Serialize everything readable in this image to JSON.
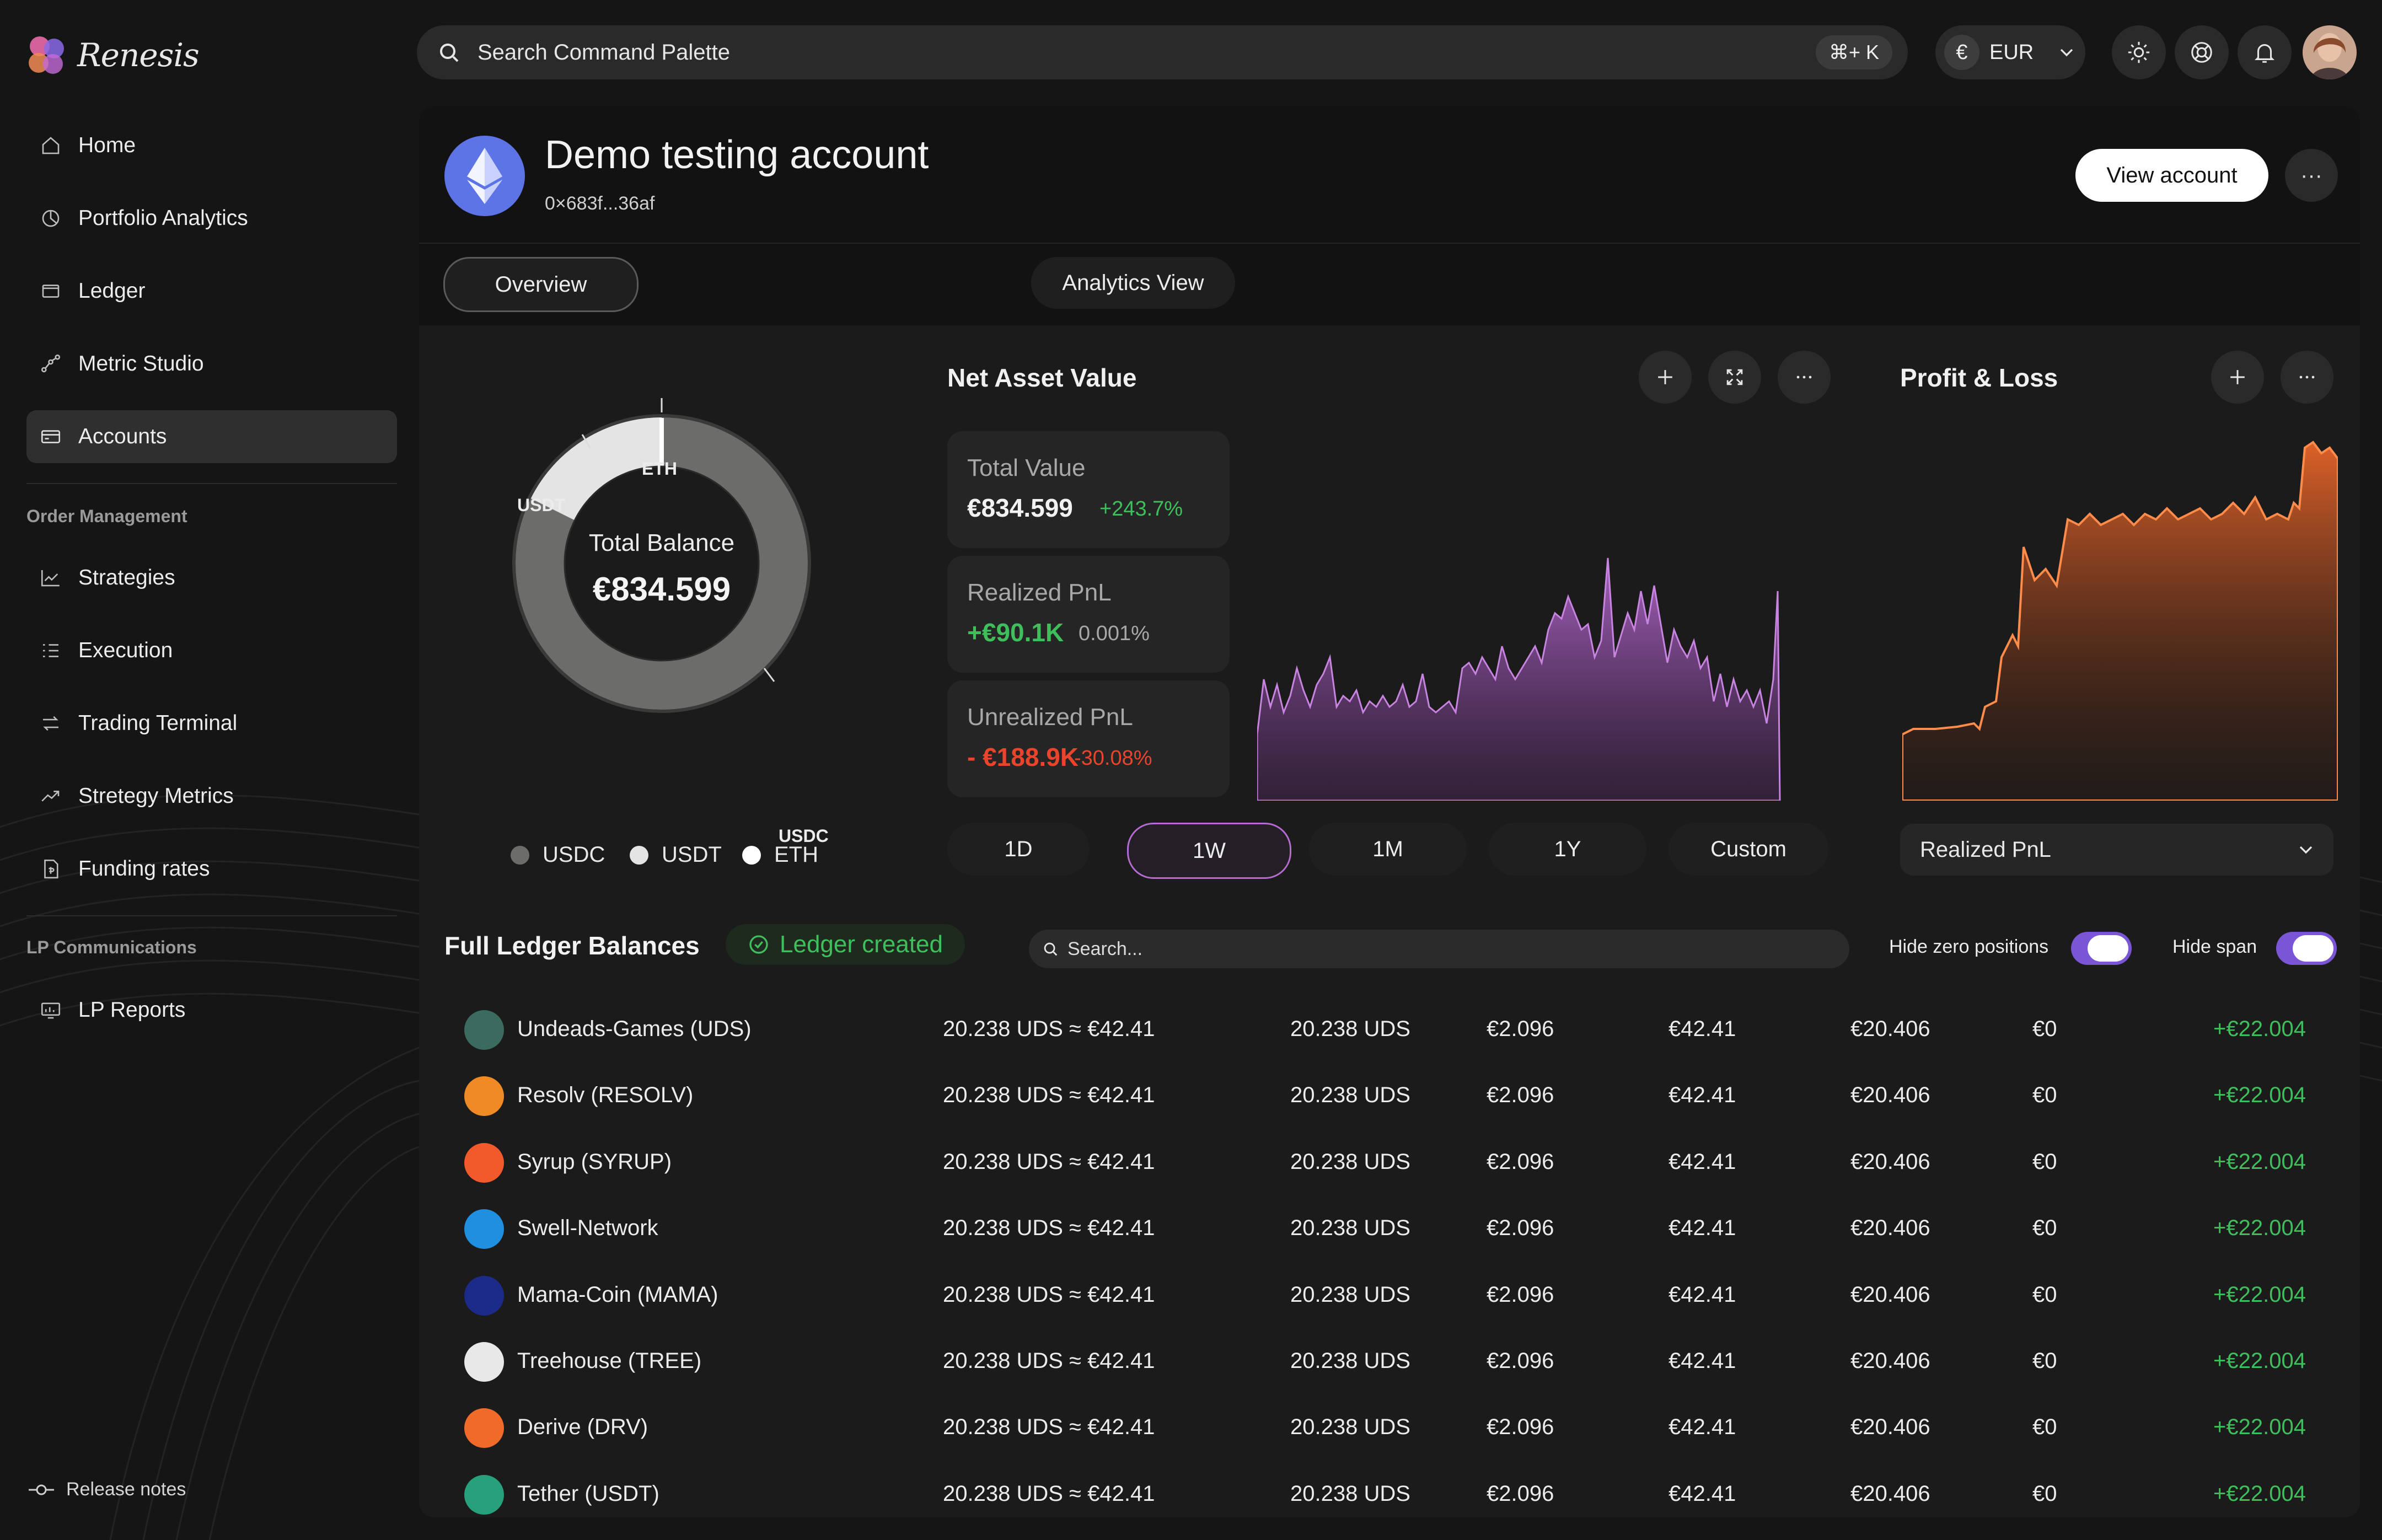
{
  "app": {
    "name": "Renesis"
  },
  "sidebar": {
    "items": [
      {
        "label": "Home",
        "icon": "home-icon"
      },
      {
        "label": "Portfolio Analytics",
        "icon": "pie-chart-icon"
      },
      {
        "label": "Ledger",
        "icon": "wallet-icon"
      },
      {
        "label": "Metric Studio",
        "icon": "nodes-icon"
      },
      {
        "label": "Accounts",
        "icon": "card-icon",
        "active": true
      }
    ],
    "section_order": "Order Management",
    "order_items": [
      {
        "label": "Strategies",
        "icon": "line-chart-icon"
      },
      {
        "label": "Execution",
        "icon": "checklist-icon"
      },
      {
        "label": "Trading Terminal",
        "icon": "swap-icon"
      },
      {
        "label": "Stretegy Metrics",
        "icon": "trend-up-icon"
      },
      {
        "label": "Funding rates",
        "icon": "document-dollar-icon"
      }
    ],
    "section_lp": "LP Communications",
    "lp_items": [
      {
        "label": "LP Reports",
        "icon": "report-icon"
      }
    ],
    "release_notes": "Release notes"
  },
  "topbar": {
    "search_placeholder": "Search Command Palette",
    "shortcut": "⌘+ K",
    "currency_symbol": "€",
    "currency": "EUR"
  },
  "account": {
    "title": "Demo testing account",
    "address": "0×683f...36af",
    "view_button": "View account",
    "more": "···"
  },
  "tabs": [
    "Overview",
    "Analytics View"
  ],
  "donut": {
    "center_label": "Total Balance",
    "center_value": "€834.599",
    "labels": {
      "eth": "ETH",
      "usdt": "USDT",
      "usdc": "USDC"
    },
    "legend": [
      "USDC",
      "USDT",
      "ETH"
    ],
    "colors": {
      "usdc": "#6c6c6a",
      "usdt": "#e4e4e4",
      "eth": "#ffffff"
    }
  },
  "nav_card": {
    "title": "Net Asset Value",
    "stats": [
      {
        "label": "Total Value",
        "value": "€834.599",
        "change": "+243.7%",
        "value_color": "#f2f2f2",
        "change_color": "#3fbf5c"
      },
      {
        "label": "Realized PnL",
        "value": "+€90.1K",
        "change": "0.001%",
        "value_color": "#3fbf5c",
        "change_color": "#a8a8a8"
      },
      {
        "label": "Unrealized PnL",
        "value": "- €188.9K",
        "change": "-30.08%",
        "value_color": "#e8452c",
        "change_color": "#e8452c"
      }
    ],
    "timeframes": [
      "1D",
      "1W",
      "1M",
      "1Y",
      "Custom"
    ],
    "selected_timeframe": "1W"
  },
  "pnl_card": {
    "title": "Profit & Loss",
    "select_value": "Realized PnL"
  },
  "ledger": {
    "title": "Full Ledger Balances",
    "badge": "Ledger created",
    "search_placeholder": "Search...",
    "toggle_zero": "Hide zero positions",
    "toggle_span": "Hide span",
    "rows": [
      {
        "name": "Undeads-Games (UDS)",
        "c1": "20.238 UDS ≈ €42.41",
        "c2": "20.238 UDS",
        "c3": "€2.096",
        "c4": "€42.41",
        "c5": "€20.406",
        "c6": "€0",
        "c7": "+€22.004",
        "color": "#3a6b5e"
      },
      {
        "name": "Resolv (RESOLV)",
        "c1": "20.238 UDS ≈ €42.41",
        "c2": "20.238 UDS",
        "c3": "€2.096",
        "c4": "€42.41",
        "c5": "€20.406",
        "c6": "€0",
        "c7": "+€22.004",
        "color": "#f08a24"
      },
      {
        "name": "Syrup (SYRUP)",
        "c1": "20.238 UDS ≈ €42.41",
        "c2": "20.238 UDS",
        "c3": "€2.096",
        "c4": "€42.41",
        "c5": "€20.406",
        "c6": "€0",
        "c7": "+€22.004",
        "color": "#f25a2c"
      },
      {
        "name": "Swell-Network",
        "c1": "20.238 UDS ≈ €42.41",
        "c2": "20.238 UDS",
        "c3": "€2.096",
        "c4": "€42.41",
        "c5": "€20.406",
        "c6": "€0",
        "c7": "+€22.004",
        "color": "#1f8fe0"
      },
      {
        "name": "Mama-Coin (MAMA)",
        "c1": "20.238 UDS ≈ €42.41",
        "c2": "20.238 UDS",
        "c3": "€2.096",
        "c4": "€42.41",
        "c5": "€20.406",
        "c6": "€0",
        "c7": "+€22.004",
        "color": "#1c2a8a"
      },
      {
        "name": "Treehouse (TREE)",
        "c1": "20.238 UDS ≈ €42.41",
        "c2": "20.238 UDS",
        "c3": "€2.096",
        "c4": "€42.41",
        "c5": "€20.406",
        "c6": "€0",
        "c7": "+€22.004",
        "color": "#e8e8e8"
      },
      {
        "name": "Derive (DRV)",
        "c1": "20.238 UDS ≈ €42.41",
        "c2": "20.238 UDS",
        "c3": "€2.096",
        "c4": "€42.41",
        "c5": "€20.406",
        "c6": "€0",
        "c7": "+€22.004",
        "color": "#f06a2a"
      },
      {
        "name": "Tether (USDT)",
        "c1": "20.238 UDS ≈ €42.41",
        "c2": "20.238 UDS",
        "c3": "€2.096",
        "c4": "€42.41",
        "c5": "€20.406",
        "c6": "€0",
        "c7": "+€22.004",
        "color": "#26a17b"
      }
    ]
  }
}
